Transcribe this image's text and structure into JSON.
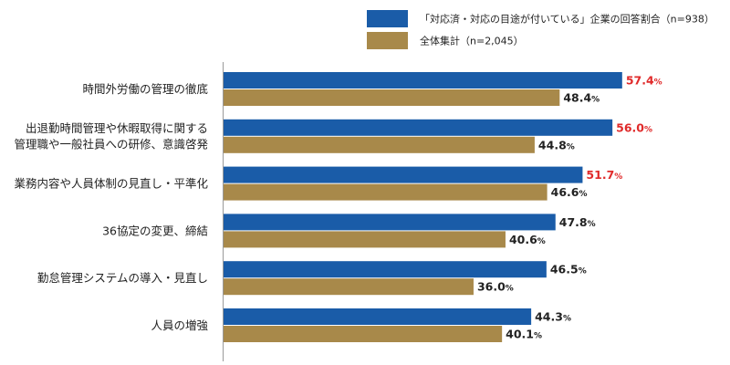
{
  "chart_data": {
    "type": "bar",
    "orientation": "horizontal",
    "unit": "%",
    "xlim": [
      0,
      100
    ],
    "legend_position": "top-right",
    "grid": false,
    "categories": [
      [
        "時間外労働の管理の徹底"
      ],
      [
        "出退勤時間管理や休暇取得に関する",
        "管理職や一般社員への研修、意識啓発"
      ],
      [
        "業務内容や人員体制の見直し・平準化"
      ],
      [
        "36協定の変更、締結"
      ],
      [
        "勤怠管理システムの導入・見直し"
      ],
      [
        "人員の増強"
      ]
    ],
    "series": [
      {
        "name": "「対応済・対応の目途が付いている」企業の回答割合（n=938）",
        "color": "#1a5ca8",
        "label_colors": [
          "#e02a2a",
          "#e02a2a",
          "#e02a2a",
          "#222222",
          "#222222",
          "#222222"
        ],
        "values": [
          57.4,
          56.0,
          51.7,
          47.8,
          46.5,
          44.3
        ]
      },
      {
        "name": "全体集計（n=2,045）",
        "color": "#a8894a",
        "label_colors": [
          "#222222",
          "#222222",
          "#222222",
          "#222222",
          "#222222",
          "#222222"
        ],
        "values": [
          48.4,
          44.8,
          46.6,
          40.6,
          36.0,
          40.1
        ]
      }
    ]
  }
}
